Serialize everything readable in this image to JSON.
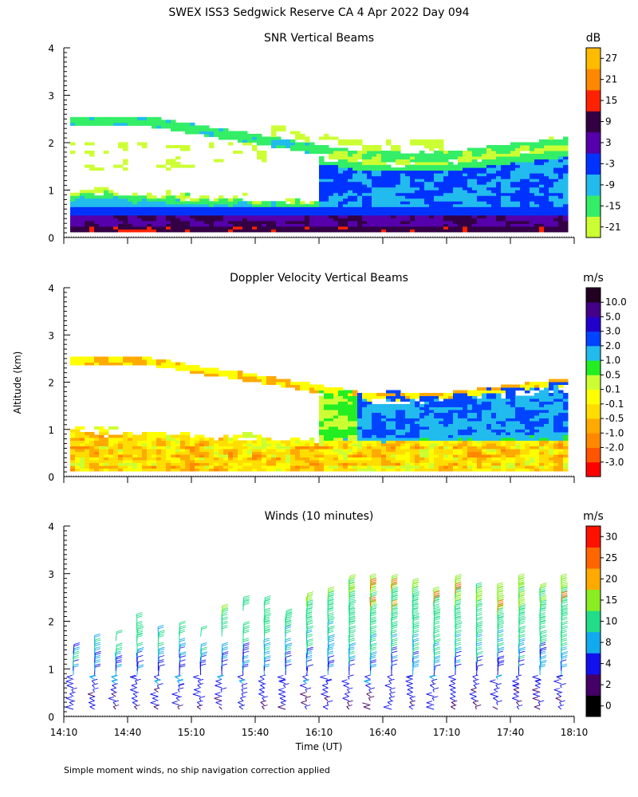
{
  "title": "SWEX ISS3 Sedgwick Reserve CA    4 Apr 2022 Day 094",
  "footnote": "Simple moment winds, no ship navigation correction applied",
  "chart_data": [
    {
      "type": "heatmap",
      "title": "SNR Vertical Beams",
      "ylabel": "",
      "ylim": [
        0,
        4
      ],
      "yticks": [
        "0",
        "1",
        "2",
        "3",
        "4"
      ],
      "xlim": [
        "14:10",
        "18:10"
      ],
      "colorbar": {
        "unit": "dB",
        "labels": [
          "-21",
          "-15",
          "-9",
          "-3",
          "3",
          "9",
          "15",
          "21",
          "27"
        ],
        "colors": [
          "#ccff33",
          "#33ee66",
          "#22bbee",
          "#0033ff",
          "#5500aa",
          "#330044",
          "#ff2200",
          "#ff8800",
          "#ffbb00"
        ]
      }
    },
    {
      "type": "heatmap",
      "title": "Doppler Velocity Vertical Beams",
      "ylabel": "Altitude (km)",
      "ylim": [
        0,
        4
      ],
      "yticks": [
        "0",
        "1",
        "2",
        "3",
        "4"
      ],
      "xlim": [
        "14:10",
        "18:10"
      ],
      "colorbar": {
        "unit": "m/s",
        "labels": [
          "-3.0",
          "-2.0",
          "-1.0",
          "-0.5",
          "-0.1",
          "0.1",
          "0.5",
          "1.0",
          "2.0",
          "3.0",
          "5.0",
          "10.0"
        ],
        "colors": [
          "#ff0000",
          "#ff5500",
          "#ff8800",
          "#ffaa00",
          "#ffdd00",
          "#ffff00",
          "#ccff33",
          "#22ee22",
          "#22bbee",
          "#0044ff",
          "#2200cc",
          "#440088",
          "#220022"
        ]
      }
    },
    {
      "type": "wind-barbs",
      "title": "Winds (10 minutes)",
      "ylabel": "",
      "xlabel": "Time (UT)",
      "ylim": [
        0,
        4
      ],
      "yticks": [
        "0",
        "1",
        "2",
        "3",
        "4"
      ],
      "xticks": [
        "14:10",
        "14:40",
        "15:10",
        "15:40",
        "16:10",
        "16:40",
        "17:10",
        "17:40",
        "18:10"
      ],
      "colorbar": {
        "unit": "m/s",
        "labels": [
          "0",
          "2",
          "4",
          "8",
          "10",
          "15",
          "20",
          "25",
          "30"
        ],
        "colors": [
          "#000000",
          "#440066",
          "#1111ee",
          "#11aaee",
          "#22dd88",
          "#88ee22",
          "#ffaa00",
          "#ff6600",
          "#ff1100"
        ]
      }
    }
  ]
}
